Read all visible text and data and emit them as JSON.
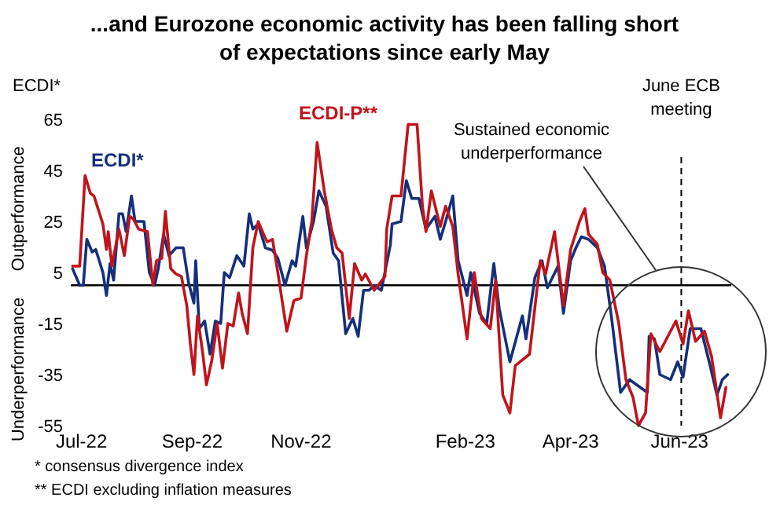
{
  "chart_data": {
    "type": "line",
    "title": "...and Eurozone economic activity has been falling short of expectations since early May",
    "ylabel": "ECDI*",
    "annotations": [
      "Outperformance",
      "Underperformance",
      "Sustained economic underperformance",
      "* consensus divergence index",
      "** ECDI excluding inflation measures"
    ],
    "xlim": [
      "2022-06-25",
      "2023-06-30"
    ],
    "xticks": [
      {
        "value": "2022-07-01",
        "label": "Jul-22"
      },
      {
        "value": "2022-09-01",
        "label": "Sep-22"
      },
      {
        "value": "2022-11-01",
        "label": "Nov-22"
      },
      {
        "value": "2023-02-01",
        "label": "Feb-23"
      },
      {
        "value": "2023-04-01",
        "label": "Apr-23"
      },
      {
        "value": "2023-06-01",
        "label": "Jun-23"
      }
    ],
    "ylim": [
      -55,
      65
    ],
    "yticks": [
      -55,
      -35,
      -15,
      5,
      25,
      45,
      65
    ],
    "grid": false,
    "legend": false,
    "marker": "none",
    "line_style": "solid",
    "ref_lines": [
      {
        "axis": "y",
        "value": 0,
        "color": "#000000",
        "line_style": "solid"
      },
      {
        "axis": "x",
        "value": "2023-06-02",
        "label": "June ECB meeting",
        "color": "#000000",
        "line_style": "dashed"
      }
    ],
    "series": [
      {
        "name": "ECDI*",
        "color": "#14307a",
        "x": [
          "2022-06-26",
          "2022-06-30",
          "2022-07-02",
          "2022-07-04",
          "2022-07-07",
          "2022-07-09",
          "2022-07-13",
          "2022-07-15",
          "2022-07-17",
          "2022-07-19",
          "2022-07-22",
          "2022-07-24",
          "2022-07-26",
          "2022-07-29",
          "2022-07-31",
          "2022-08-05",
          "2022-08-08",
          "2022-08-11",
          "2022-08-13",
          "2022-08-16",
          "2022-08-19",
          "2022-08-23",
          "2022-08-27",
          "2022-08-30",
          "2022-09-02",
          "2022-09-03",
          "2022-09-05",
          "2022-09-08",
          "2022-09-11",
          "2022-09-14",
          "2022-09-17",
          "2022-09-19",
          "2022-09-22",
          "2022-09-26",
          "2022-09-30",
          "2022-10-03",
          "2022-10-05",
          "2022-10-08",
          "2022-10-12",
          "2022-10-16",
          "2022-10-19",
          "2022-10-23",
          "2022-10-27",
          "2022-10-29",
          "2022-11-02",
          "2022-11-04",
          "2022-11-08",
          "2022-11-11",
          "2022-11-15",
          "2022-11-19",
          "2022-11-22",
          "2022-11-26",
          "2022-11-30",
          "2022-12-03",
          "2022-12-06",
          "2022-12-09",
          "2022-12-12",
          "2022-12-16",
          "2022-12-21",
          "2022-12-22",
          "2022-12-27",
          "2022-12-30",
          "2023-01-02",
          "2023-01-06",
          "2023-01-10",
          "2023-01-15",
          "2023-01-18",
          "2023-01-21",
          "2023-01-25",
          "2023-01-28",
          "2023-02-02",
          "2023-02-04",
          "2023-02-09",
          "2023-02-13",
          "2023-02-17",
          "2023-02-20",
          "2023-02-26",
          "2023-03-05",
          "2023-03-07",
          "2023-03-12",
          "2023-03-16",
          "2023-03-19",
          "2023-03-25",
          "2023-03-28",
          "2023-04-01",
          "2023-04-04",
          "2023-04-07",
          "2023-04-11",
          "2023-04-16",
          "2023-04-20",
          "2023-04-24",
          "2023-04-29",
          "2023-05-04",
          "2023-05-08",
          "2023-05-14",
          "2023-05-15",
          "2023-05-18",
          "2023-05-21",
          "2023-05-27",
          "2023-05-31",
          "2023-06-03",
          "2023-06-07",
          "2023-06-13",
          "2023-06-18",
          "2023-06-22",
          "2023-06-25",
          "2023-06-28"
        ],
        "values": [
          6.5,
          0,
          0,
          18,
          13,
          14,
          5,
          -4,
          8.5,
          2,
          28,
          28,
          21,
          35,
          25,
          25,
          5,
          0,
          6.5,
          20,
          11.6,
          14.7,
          14.7,
          1,
          -7,
          9.6,
          -17,
          -14,
          -27,
          -14,
          -15,
          5,
          3,
          11.6,
          7.5,
          28,
          22,
          24,
          14.7,
          13.7,
          10.6,
          0,
          9.6,
          7.5,
          27,
          14.7,
          25,
          37,
          31,
          12.6,
          9.6,
          -19,
          -13,
          -20,
          -2,
          -2,
          0,
          -2,
          15.7,
          24,
          25,
          41,
          34,
          34,
          22,
          27,
          18,
          25,
          35,
          9.6,
          -4,
          5,
          -11,
          -15,
          8.5,
          -9,
          -30,
          -12,
          -21,
          3,
          9.6,
          -1,
          7.5,
          -11,
          9.6,
          14.7,
          19,
          18,
          14.7,
          7.5,
          -13,
          -42,
          -37,
          -39,
          -42,
          -20,
          -21,
          -35,
          -37,
          -30,
          -36,
          -17,
          -17,
          -31,
          -43,
          -37,
          -35
        ]
      },
      {
        "name": "ECDI-P**",
        "color": "#c0141c",
        "x": [
          "2022-06-26",
          "2022-06-30",
          "2022-07-03",
          "2022-07-06",
          "2022-07-08",
          "2022-07-13",
          "2022-07-15",
          "2022-07-16",
          "2022-07-18",
          "2022-07-22",
          "2022-07-25",
          "2022-07-28",
          "2022-07-30",
          "2022-08-02",
          "2022-08-07",
          "2022-08-10",
          "2022-08-12",
          "2022-08-15",
          "2022-08-17",
          "2022-08-20",
          "2022-08-23",
          "2022-08-26",
          "2022-08-29",
          "2022-08-31",
          "2022-09-02",
          "2022-09-04",
          "2022-09-07",
          "2022-09-09",
          "2022-09-12",
          "2022-09-15",
          "2022-09-18",
          "2022-09-21",
          "2022-09-24",
          "2022-09-27",
          "2022-09-29",
          "2022-10-02",
          "2022-10-05",
          "2022-10-08",
          "2022-10-11",
          "2022-10-13",
          "2022-10-16",
          "2022-10-19",
          "2022-10-24",
          "2022-10-28",
          "2022-11-01",
          "2022-11-04",
          "2022-11-07",
          "2022-11-10",
          "2022-11-14",
          "2022-11-18",
          "2022-11-21",
          "2022-11-24",
          "2022-11-28",
          "2022-12-01",
          "2022-12-05",
          "2022-12-07",
          "2022-12-12",
          "2022-12-18",
          "2022-12-19",
          "2022-12-22",
          "2022-12-27",
          "2022-12-31",
          "2023-01-05",
          "2023-01-08",
          "2023-01-10",
          "2023-01-13",
          "2023-01-18",
          "2023-01-21",
          "2023-01-25",
          "2023-01-28",
          "2023-02-02",
          "2023-02-06",
          "2023-02-10",
          "2023-02-15",
          "2023-02-18",
          "2023-02-22",
          "2023-02-26",
          "2023-03-01",
          "2023-03-09",
          "2023-03-15",
          "2023-03-18",
          "2023-03-23",
          "2023-03-28",
          "2023-04-01",
          "2023-04-06",
          "2023-04-09",
          "2023-04-11",
          "2023-04-16",
          "2023-04-19",
          "2023-04-23",
          "2023-04-28",
          "2023-05-02",
          "2023-05-06",
          "2023-05-09",
          "2023-05-13",
          "2023-05-16",
          "2023-05-21",
          "2023-05-24",
          "2023-05-30",
          "2023-06-03",
          "2023-06-06",
          "2023-06-10",
          "2023-06-15",
          "2023-06-19",
          "2023-06-24",
          "2023-06-27"
        ],
        "values": [
          7.5,
          7.5,
          43,
          36,
          35,
          24,
          14,
          21,
          7.5,
          22,
          11.6,
          27,
          26,
          22,
          21,
          0,
          9.6,
          10.6,
          29,
          6.5,
          4.4,
          3.4,
          -8,
          -23,
          -35,
          -12,
          -27,
          -39,
          -29.5,
          -15,
          -32.5,
          -15,
          -16,
          -3,
          -11,
          -19,
          14.7,
          25,
          20,
          17,
          18,
          5,
          -18,
          -6,
          -5,
          11.6,
          25,
          56,
          37,
          22,
          14.7,
          12.6,
          -13,
          8.5,
          2,
          4.4,
          -2,
          3.4,
          22,
          35,
          35,
          63,
          63,
          31,
          21,
          37,
          23,
          31,
          23,
          4.4,
          -21,
          5,
          -13,
          -17,
          2,
          -43,
          -50,
          -31.5,
          -27,
          9.6,
          4.4,
          21,
          -8,
          14,
          25,
          30,
          20,
          16,
          5,
          2,
          -15,
          -37,
          -44,
          -55,
          -50,
          -19,
          -26,
          -22,
          -14,
          -23,
          -10,
          -22,
          -18,
          -28,
          -52,
          -40
        ]
      }
    ]
  }
}
